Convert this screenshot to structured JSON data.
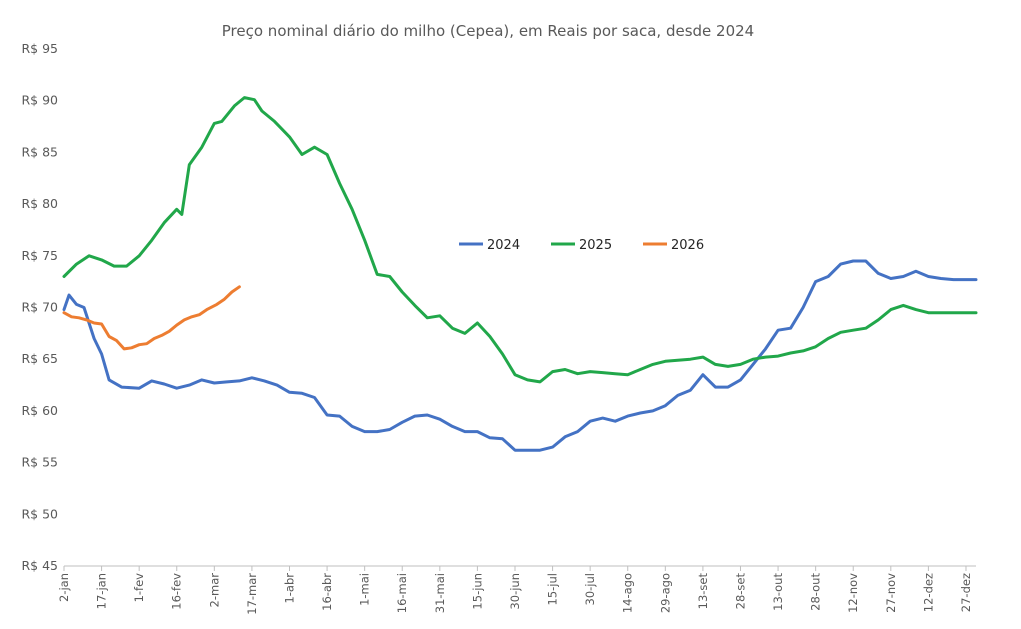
{
  "chart_data": {
    "type": "line",
    "title": "Preço nominal diário do milho (Cepea), em Reais por saca, desde 2024",
    "xlabel": "",
    "ylabel": "",
    "ylim": [
      45,
      95
    ],
    "y_ticks": [
      {
        "value": 95,
        "label": "R$ 95"
      },
      {
        "value": 90,
        "label": "R$ 90"
      },
      {
        "value": 85,
        "label": "R$ 85"
      },
      {
        "value": 80,
        "label": "R$ 80"
      },
      {
        "value": 75,
        "label": "R$ 75"
      },
      {
        "value": 70,
        "label": "R$ 70"
      },
      {
        "value": 65,
        "label": "R$ 65"
      },
      {
        "value": 60,
        "label": "R$ 60"
      },
      {
        "value": 55,
        "label": "R$ 55"
      },
      {
        "value": 50,
        "label": "R$ 50"
      },
      {
        "value": 45,
        "label": "R$ 45"
      }
    ],
    "x_ticks": [
      "2-jan",
      "17-jan",
      "1-fev",
      "16-fev",
      "2-mar",
      "17-mar",
      "1-abr",
      "16-abr",
      "1-mai",
      "16-mai",
      "31-mai",
      "15-jun",
      "30-jun",
      "15-jul",
      "30-jul",
      "14-ago",
      "29-ago",
      "13-set",
      "28-set",
      "13-out",
      "28-out",
      "12-nov",
      "27-nov",
      "12-dez",
      "27-dez"
    ],
    "grid": false,
    "legend_position": "center-right",
    "series": [
      {
        "name": "2024",
        "color": "#4472C4",
        "x": [
          "2-jan",
          "4-jan",
          "7-jan",
          "10-jan",
          "14-jan",
          "17-jan",
          "20-jan",
          "25-jan",
          "1-fev",
          "6-fev",
          "11-fev",
          "16-fev",
          "21-fev",
          "26-fev",
          "2-mar",
          "7-mar",
          "12-mar",
          "17-mar",
          "22-mar",
          "27-mar",
          "1-abr",
          "6-abr",
          "11-abr",
          "16-abr",
          "21-abr",
          "26-abr",
          "1-mai",
          "6-mai",
          "11-mai",
          "16-mai",
          "21-mai",
          "26-mai",
          "31-mai",
          "5-jun",
          "10-jun",
          "15-jun",
          "20-jun",
          "25-jun",
          "30-jun",
          "5-jul",
          "10-jul",
          "15-jul",
          "20-jul",
          "25-jul",
          "30-jul",
          "4-ago",
          "9-ago",
          "14-ago",
          "19-ago",
          "24-ago",
          "29-ago",
          "3-set",
          "8-set",
          "13-set",
          "18-set",
          "23-set",
          "28-set",
          "3-out",
          "8-out",
          "13-out",
          "18-out",
          "23-out",
          "28-out",
          "2-nov",
          "7-nov",
          "12-nov",
          "17-nov",
          "22-nov",
          "27-nov",
          "2-dez",
          "7-dez",
          "12-dez",
          "17-dez",
          "22-dez",
          "27-dez",
          "31-dez"
        ],
        "values": [
          69.8,
          71.2,
          70.3,
          70.0,
          67.0,
          65.5,
          63.0,
          62.3,
          62.2,
          62.9,
          62.6,
          62.2,
          62.5,
          63.0,
          62.7,
          62.8,
          62.9,
          63.2,
          62.9,
          62.5,
          61.8,
          61.7,
          61.3,
          59.6,
          59.5,
          58.5,
          58.0,
          58.0,
          58.2,
          58.9,
          59.5,
          59.6,
          59.2,
          58.5,
          58.0,
          58.0,
          57.4,
          57.3,
          56.2,
          56.2,
          56.2,
          56.5,
          57.5,
          58.0,
          59.0,
          59.3,
          59.0,
          59.5,
          59.8,
          60.0,
          60.5,
          61.5,
          62.0,
          63.5,
          62.3,
          62.3,
          63.0,
          64.5,
          66.0,
          67.8,
          68.0,
          70.0,
          72.5,
          73.0,
          74.2,
          74.5,
          74.5,
          73.3,
          72.8,
          73.0,
          73.5,
          73.0,
          72.8,
          72.7,
          72.7,
          72.7
        ]
      },
      {
        "name": "2025",
        "color": "#21A74A",
        "x": [
          "2-jan",
          "7-jan",
          "12-jan",
          "17-jan",
          "22-jan",
          "27-jan",
          "1-fev",
          "6-fev",
          "11-fev",
          "16-fev",
          "18-fev",
          "21-fev",
          "26-fev",
          "2-mar",
          "5-mar",
          "10-mar",
          "14-mar",
          "18-mar",
          "21-mar",
          "26-mar",
          "1-abr",
          "6-abr",
          "11-abr",
          "16-abr",
          "21-abr",
          "26-abr",
          "1-mai",
          "6-mai",
          "11-mai",
          "16-mai",
          "21-mai",
          "26-mai",
          "31-mai",
          "5-jun",
          "10-jun",
          "15-jun",
          "20-jun",
          "25-jun",
          "30-jun",
          "5-jul",
          "10-jul",
          "15-jul",
          "20-jul",
          "25-jul",
          "30-jul",
          "4-ago",
          "9-ago",
          "14-ago",
          "19-ago",
          "24-ago",
          "29-ago",
          "3-set",
          "8-set",
          "13-set",
          "18-set",
          "23-set",
          "28-set",
          "3-out",
          "8-out",
          "13-out",
          "18-out",
          "23-out",
          "28-out",
          "2-nov",
          "7-nov",
          "12-nov",
          "17-nov",
          "22-nov",
          "27-nov",
          "2-dez",
          "7-dez",
          "12-dez",
          "17-dez",
          "22-dez",
          "27-dez",
          "31-dez"
        ],
        "values": [
          73.0,
          74.2,
          75.0,
          74.6,
          74.0,
          74.0,
          75.0,
          76.5,
          78.2,
          79.5,
          79.0,
          83.8,
          85.5,
          87.8,
          88.0,
          89.5,
          90.3,
          90.1,
          89.0,
          88.0,
          86.5,
          84.8,
          85.5,
          84.8,
          82.0,
          79.5,
          76.5,
          73.2,
          73.0,
          71.5,
          70.2,
          69.0,
          69.2,
          68.0,
          67.5,
          68.5,
          67.2,
          65.5,
          63.5,
          63.0,
          62.8,
          63.8,
          64.0,
          63.6,
          63.8,
          63.7,
          63.6,
          63.5,
          64.0,
          64.5,
          64.8,
          64.9,
          65.0,
          65.2,
          64.5,
          64.3,
          64.5,
          65.0,
          65.2,
          65.3,
          65.6,
          65.8,
          66.2,
          67.0,
          67.6,
          67.8,
          68.0,
          68.8,
          69.8,
          70.2,
          69.8,
          69.5,
          69.5,
          69.5,
          69.5,
          69.5
        ]
      },
      {
        "name": "2026",
        "color": "#ED7D31",
        "x": [
          "2-jan",
          "5-jan",
          "8-jan",
          "11-jan",
          "14-jan",
          "17-jan",
          "20-jan",
          "23-jan",
          "26-jan",
          "29-jan",
          "1-fev",
          "4-fev",
          "7-fev",
          "10-fev",
          "13-fev",
          "16-fev",
          "19-fev",
          "22-fev",
          "25-fev",
          "28-fev",
          "3-mar",
          "6-mar",
          "9-mar",
          "12-mar"
        ],
        "values": [
          69.5,
          69.1,
          69.0,
          68.8,
          68.5,
          68.4,
          67.2,
          66.8,
          66.0,
          66.1,
          66.4,
          66.5,
          67.0,
          67.3,
          67.7,
          68.3,
          68.8,
          69.1,
          69.3,
          69.8,
          70.3,
          70.8,
          71.5,
          72.0
        ]
      }
    ]
  }
}
